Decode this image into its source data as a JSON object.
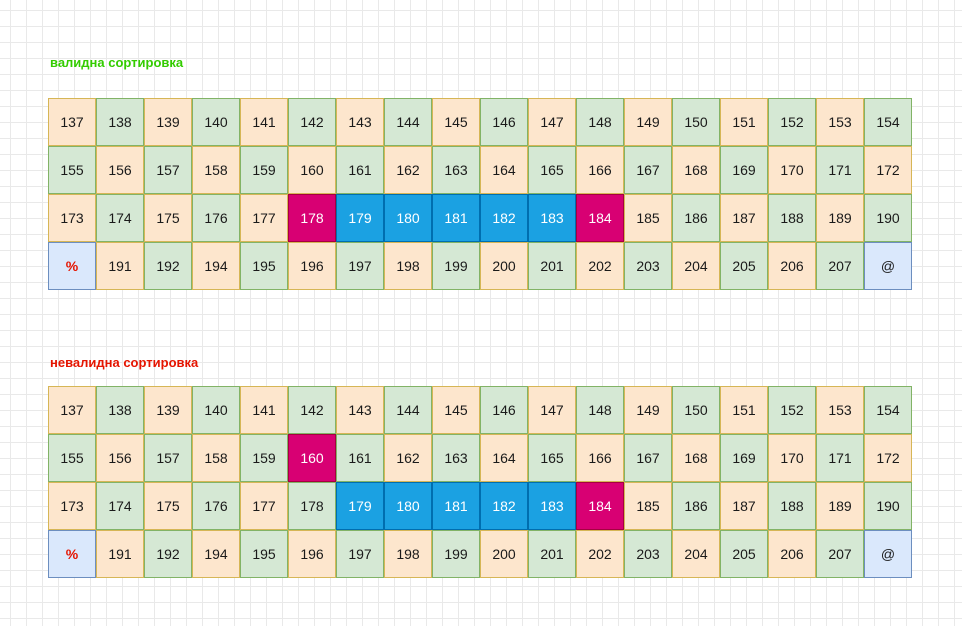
{
  "colors": {
    "valid_title": "#33cc00",
    "invalid_title": "#e51400",
    "orange_fill": "#fde6cd",
    "green_fill": "#d5e8d4",
    "blue_fill": "#1ba1e2",
    "magenta_fill": "#d80073",
    "light_blue_fill": "#dae8fc"
  },
  "sections": [
    {
      "title": "валидна сортировка",
      "rows": [
        [
          [
            "137",
            "orange"
          ],
          [
            "138",
            "green"
          ],
          [
            "139",
            "orange"
          ],
          [
            "140",
            "green"
          ],
          [
            "141",
            "orange"
          ],
          [
            "142",
            "green"
          ],
          [
            "143",
            "orange"
          ],
          [
            "144",
            "green"
          ],
          [
            "145",
            "orange"
          ],
          [
            "146",
            "green"
          ],
          [
            "147",
            "orange"
          ],
          [
            "148",
            "green"
          ],
          [
            "149",
            "orange"
          ],
          [
            "150",
            "green"
          ],
          [
            "151",
            "orange"
          ],
          [
            "152",
            "green"
          ],
          [
            "153",
            "orange"
          ],
          [
            "154",
            "green"
          ]
        ],
        [
          [
            "155",
            "green"
          ],
          [
            "156",
            "orange"
          ],
          [
            "157",
            "green"
          ],
          [
            "158",
            "orange"
          ],
          [
            "159",
            "green"
          ],
          [
            "160",
            "orange"
          ],
          [
            "161",
            "green"
          ],
          [
            "162",
            "orange"
          ],
          [
            "163",
            "green"
          ],
          [
            "164",
            "orange"
          ],
          [
            "165",
            "green"
          ],
          [
            "166",
            "orange"
          ],
          [
            "167",
            "green"
          ],
          [
            "168",
            "orange"
          ],
          [
            "169",
            "green"
          ],
          [
            "170",
            "orange"
          ],
          [
            "171",
            "green"
          ],
          [
            "172",
            "orange"
          ]
        ],
        [
          [
            "173",
            "orange"
          ],
          [
            "174",
            "green"
          ],
          [
            "175",
            "orange"
          ],
          [
            "176",
            "green"
          ],
          [
            "177",
            "orange"
          ],
          [
            "178",
            "magenta"
          ],
          [
            "179",
            "blue"
          ],
          [
            "180",
            "blue"
          ],
          [
            "181",
            "blue"
          ],
          [
            "182",
            "blue"
          ],
          [
            "183",
            "blue"
          ],
          [
            "184",
            "magenta"
          ],
          [
            "185",
            "orange"
          ],
          [
            "186",
            "green"
          ],
          [
            "187",
            "orange"
          ],
          [
            "188",
            "green"
          ],
          [
            "189",
            "orange"
          ],
          [
            "190",
            "green"
          ]
        ],
        [
          [
            "%",
            "light"
          ],
          [
            "191",
            "orange"
          ],
          [
            "192",
            "green"
          ],
          [
            "194",
            "orange"
          ],
          [
            "195",
            "green"
          ],
          [
            "196",
            "orange"
          ],
          [
            "197",
            "green"
          ],
          [
            "198",
            "orange"
          ],
          [
            "199",
            "green"
          ],
          [
            "200",
            "orange"
          ],
          [
            "201",
            "green"
          ],
          [
            "202",
            "orange"
          ],
          [
            "203",
            "green"
          ],
          [
            "204",
            "orange"
          ],
          [
            "205",
            "green"
          ],
          [
            "206",
            "orange"
          ],
          [
            "207",
            "green"
          ],
          [
            "@",
            "light"
          ]
        ]
      ]
    },
    {
      "title": "невалидна сортировка",
      "rows": [
        [
          [
            "137",
            "orange"
          ],
          [
            "138",
            "green"
          ],
          [
            "139",
            "orange"
          ],
          [
            "140",
            "green"
          ],
          [
            "141",
            "orange"
          ],
          [
            "142",
            "green"
          ],
          [
            "143",
            "orange"
          ],
          [
            "144",
            "green"
          ],
          [
            "145",
            "orange"
          ],
          [
            "146",
            "green"
          ],
          [
            "147",
            "orange"
          ],
          [
            "148",
            "green"
          ],
          [
            "149",
            "orange"
          ],
          [
            "150",
            "green"
          ],
          [
            "151",
            "orange"
          ],
          [
            "152",
            "green"
          ],
          [
            "153",
            "orange"
          ],
          [
            "154",
            "green"
          ]
        ],
        [
          [
            "155",
            "green"
          ],
          [
            "156",
            "orange"
          ],
          [
            "157",
            "green"
          ],
          [
            "158",
            "orange"
          ],
          [
            "159",
            "green"
          ],
          [
            "160",
            "magenta"
          ],
          [
            "161",
            "green"
          ],
          [
            "162",
            "orange"
          ],
          [
            "163",
            "green"
          ],
          [
            "164",
            "orange"
          ],
          [
            "165",
            "green"
          ],
          [
            "166",
            "orange"
          ],
          [
            "167",
            "green"
          ],
          [
            "168",
            "orange"
          ],
          [
            "169",
            "green"
          ],
          [
            "170",
            "orange"
          ],
          [
            "171",
            "green"
          ],
          [
            "172",
            "orange"
          ]
        ],
        [
          [
            "173",
            "orange"
          ],
          [
            "174",
            "green"
          ],
          [
            "175",
            "orange"
          ],
          [
            "176",
            "green"
          ],
          [
            "177",
            "orange"
          ],
          [
            "178",
            "green"
          ],
          [
            "179",
            "blue"
          ],
          [
            "180",
            "blue"
          ],
          [
            "181",
            "blue"
          ],
          [
            "182",
            "blue"
          ],
          [
            "183",
            "blue"
          ],
          [
            "184",
            "magenta"
          ],
          [
            "185",
            "orange"
          ],
          [
            "186",
            "green"
          ],
          [
            "187",
            "orange"
          ],
          [
            "188",
            "green"
          ],
          [
            "189",
            "orange"
          ],
          [
            "190",
            "green"
          ]
        ],
        [
          [
            "%",
            "light"
          ],
          [
            "191",
            "orange"
          ],
          [
            "192",
            "green"
          ],
          [
            "194",
            "orange"
          ],
          [
            "195",
            "green"
          ],
          [
            "196",
            "orange"
          ],
          [
            "197",
            "green"
          ],
          [
            "198",
            "orange"
          ],
          [
            "199",
            "green"
          ],
          [
            "200",
            "orange"
          ],
          [
            "201",
            "green"
          ],
          [
            "202",
            "orange"
          ],
          [
            "203",
            "green"
          ],
          [
            "204",
            "orange"
          ],
          [
            "205",
            "green"
          ],
          [
            "206",
            "orange"
          ],
          [
            "207",
            "green"
          ],
          [
            "@",
            "light"
          ]
        ]
      ]
    }
  ]
}
